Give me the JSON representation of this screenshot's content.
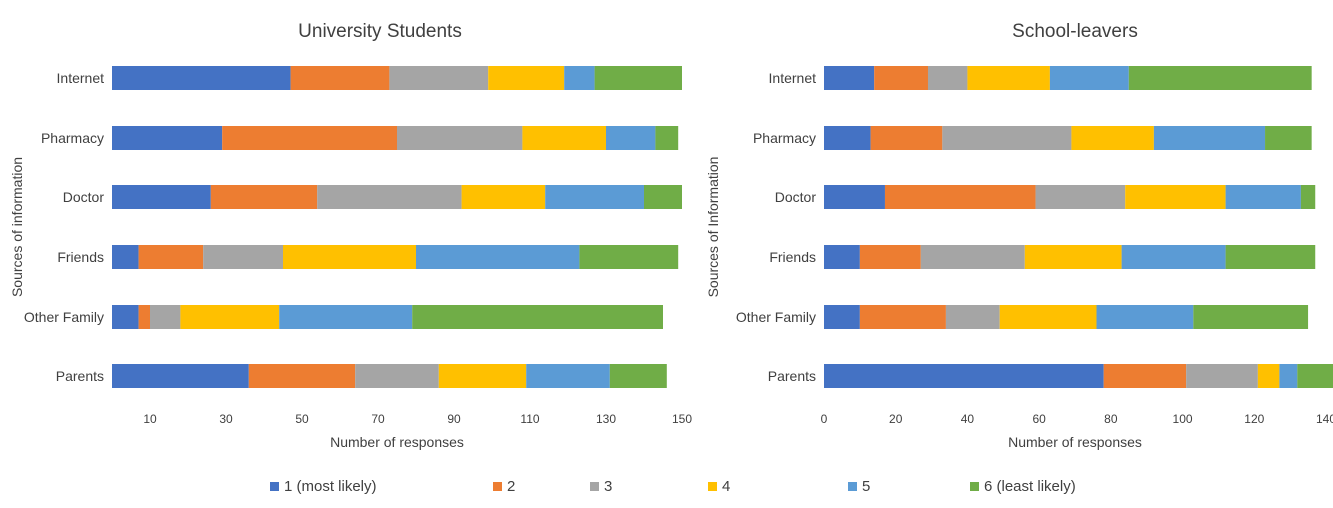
{
  "legend": [
    {
      "label": "1 (most likely)",
      "color": "#4472C4"
    },
    {
      "label": "2",
      "color": "#ED7D31"
    },
    {
      "label": "3",
      "color": "#A5A5A5"
    },
    {
      "label": "4",
      "color": "#FFC000"
    },
    {
      "label": "5",
      "color": "#5B9BD5"
    },
    {
      "label": "6 (least likely)",
      "color": "#70AD47"
    }
  ],
  "chart_data": [
    {
      "type": "bar",
      "orientation": "horizontal",
      "stacked": true,
      "title": "University Students",
      "xlabel": "Number of responses",
      "ylabel": "Sources of information",
      "categories": [
        "Internet",
        "Pharmacy",
        "Doctor",
        "Friends",
        "Other Family",
        "Parents"
      ],
      "xlim": [
        0,
        150
      ],
      "xticks": [
        10,
        30,
        50,
        70,
        90,
        110,
        130,
        150
      ],
      "series": [
        {
          "name": "1 (most likely)",
          "values": [
            47,
            29,
            26,
            7,
            7,
            36
          ]
        },
        {
          "name": "2",
          "values": [
            26,
            46,
            28,
            17,
            3,
            28
          ]
        },
        {
          "name": "3",
          "values": [
            26,
            33,
            38,
            21,
            8,
            22
          ]
        },
        {
          "name": "4",
          "values": [
            20,
            22,
            22,
            35,
            26,
            23
          ]
        },
        {
          "name": "5",
          "values": [
            8,
            13,
            26,
            43,
            35,
            22
          ]
        },
        {
          "name": "6 (least likely)",
          "values": [
            23,
            6,
            10,
            26,
            66,
            15
          ]
        }
      ]
    },
    {
      "type": "bar",
      "orientation": "horizontal",
      "stacked": true,
      "title": "School-leavers",
      "xlabel": "Number of responses",
      "ylabel": "Sources of Information",
      "categories": [
        "Internet",
        "Pharmacy",
        "Doctor",
        "Friends",
        "Other Family",
        "Parents"
      ],
      "xlim": [
        0,
        140
      ],
      "xticks": [
        0,
        20,
        40,
        60,
        80,
        100,
        120,
        140
      ],
      "series": [
        {
          "name": "1 (most likely)",
          "values": [
            14,
            13,
            17,
            10,
            10,
            78
          ]
        },
        {
          "name": "2",
          "values": [
            15,
            20,
            42,
            17,
            24,
            23
          ]
        },
        {
          "name": "3",
          "values": [
            11,
            36,
            25,
            29,
            15,
            20
          ]
        },
        {
          "name": "4",
          "values": [
            23,
            23,
            28,
            27,
            27,
            6
          ]
        },
        {
          "name": "5",
          "values": [
            22,
            31,
            21,
            29,
            27,
            5
          ]
        },
        {
          "name": "6 (least likely)",
          "values": [
            51,
            13,
            4,
            25,
            32,
            10
          ]
        }
      ]
    }
  ]
}
